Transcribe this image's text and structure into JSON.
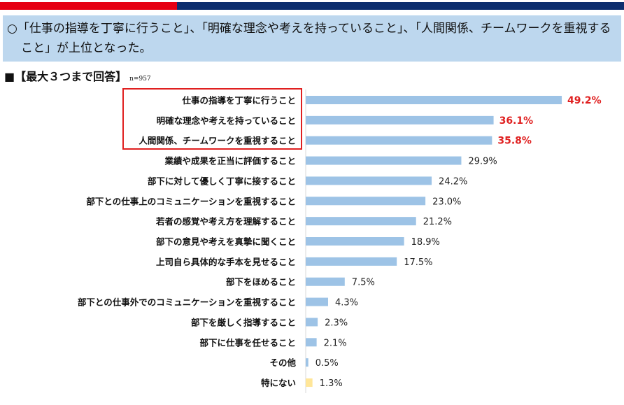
{
  "summary_text": "○「仕事の指導を丁寧に行うこと」、「明確な理念や考えを持っていること」、「人間関係、チームワークを重視すること」が上位となった。",
  "subheading": "■【最大３つまで回答】",
  "sample_size": "n=957",
  "colors": {
    "bar": "#9dc3e6",
    "other_bar": "#ffe699",
    "highlight": "#e02020",
    "top_band_left": "#e60012",
    "top_band_right": "#0d2e6e",
    "summary_bg": "#bdd7ee"
  },
  "chart_data": {
    "type": "bar",
    "orientation": "horizontal",
    "categories": [
      "仕事の指導を丁寧に行うこと",
      "明確な理念や考えを持っていること",
      "人間関係、チームワークを重視すること",
      "業績や成果を正当に評価すること",
      "部下に対して優しく丁寧に接すること",
      "部下との仕事上のコミュニケーションを重視すること",
      "若者の感覚や考え方を理解すること",
      "部下の意見や考えを真摯に聞くこと",
      "上司自ら具体的な手本を見せること",
      "部下をほめること",
      "部下との仕事外でのコミュニケーションを重視すること",
      "部下を厳しく指導すること",
      "部下に仕事を任せること",
      "その他",
      "特にない"
    ],
    "values": [
      49.2,
      36.1,
      35.8,
      29.9,
      24.2,
      23.0,
      21.2,
      18.9,
      17.5,
      7.5,
      4.3,
      2.3,
      2.1,
      0.5,
      1.3
    ],
    "labels": [
      "49.2%",
      "36.1%",
      "35.8%",
      "29.9%",
      "24.2%",
      "23.0%",
      "21.2%",
      "18.9%",
      "17.5%",
      "7.5%",
      "4.3%",
      "2.3%",
      "2.1%",
      "0.5%",
      "1.3%"
    ],
    "highlighted": [
      0,
      1,
      2
    ],
    "unit": "%"
  }
}
